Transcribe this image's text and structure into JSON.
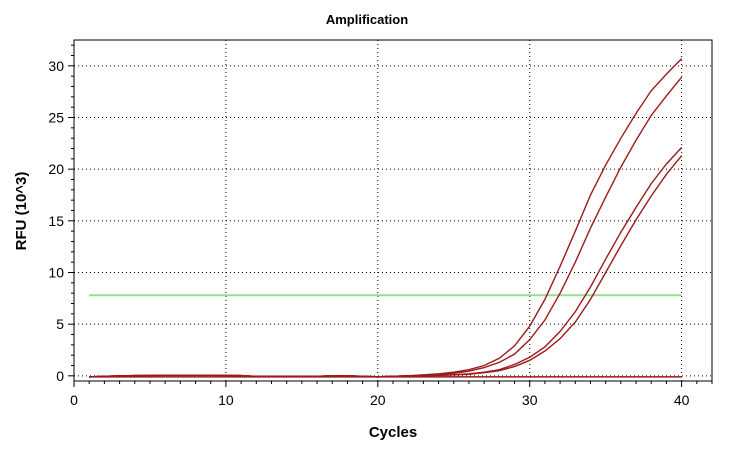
{
  "chart_data": {
    "type": "line",
    "title": "Amplification",
    "xlabel": "Cycles",
    "ylabel": "RFU (10^3)",
    "xlim": [
      0,
      42
    ],
    "ylim": [
      -0.5,
      32.5
    ],
    "xticks": [
      0,
      10,
      20,
      30,
      40
    ],
    "yticks": [
      0,
      5,
      10,
      15,
      20,
      25,
      30
    ],
    "grid": true,
    "threshold": {
      "value": 7.8,
      "color": "#90e090"
    },
    "series_color": "#9b1b1b",
    "x": [
      1,
      2,
      3,
      4,
      5,
      6,
      7,
      8,
      9,
      10,
      11,
      12,
      13,
      14,
      15,
      16,
      17,
      18,
      19,
      20,
      21,
      22,
      23,
      24,
      25,
      26,
      27,
      28,
      29,
      30,
      31,
      32,
      33,
      34,
      35,
      36,
      37,
      38,
      39,
      40
    ],
    "series": [
      {
        "values": [
          -0.1,
          -0.05,
          0.0,
          0.02,
          0.04,
          0.05,
          0.05,
          0.05,
          0.05,
          0.04,
          0.02,
          -0.05,
          -0.05,
          -0.05,
          -0.05,
          -0.05,
          0.0,
          0.0,
          -0.05,
          -0.1,
          -0.05,
          0.0,
          0.1,
          0.2,
          0.35,
          0.6,
          1.0,
          1.7,
          2.9,
          4.8,
          7.4,
          10.6,
          14.0,
          17.5,
          20.4,
          23.0,
          25.4,
          27.6,
          29.2,
          30.7
        ]
      },
      {
        "values": [
          -0.1,
          -0.05,
          0.0,
          0.02,
          0.04,
          0.05,
          0.05,
          0.05,
          0.05,
          0.04,
          0.02,
          -0.05,
          -0.05,
          -0.05,
          -0.05,
          -0.05,
          0.0,
          0.0,
          -0.05,
          -0.1,
          -0.05,
          0.0,
          0.05,
          0.15,
          0.25,
          0.45,
          0.8,
          1.3,
          2.1,
          3.5,
          5.4,
          8.0,
          11.0,
          14.3,
          17.3,
          20.2,
          22.8,
          25.2,
          27.1,
          28.9
        ]
      },
      {
        "values": [
          -0.1,
          -0.05,
          0.0,
          0.02,
          0.04,
          0.05,
          0.05,
          0.05,
          0.05,
          0.04,
          0.02,
          -0.05,
          -0.05,
          -0.05,
          -0.05,
          -0.05,
          0.0,
          0.0,
          -0.05,
          -0.1,
          -0.05,
          0.0,
          0.0,
          0.05,
          0.1,
          0.2,
          0.35,
          0.6,
          1.1,
          1.8,
          2.8,
          4.3,
          6.2,
          8.6,
          11.3,
          13.9,
          16.3,
          18.6,
          20.5,
          22.1
        ]
      },
      {
        "values": [
          -0.1,
          -0.05,
          0.0,
          0.02,
          0.04,
          0.05,
          0.05,
          0.05,
          0.05,
          0.04,
          0.02,
          -0.05,
          -0.05,
          -0.05,
          -0.05,
          -0.05,
          0.0,
          0.0,
          -0.05,
          -0.1,
          -0.05,
          0.0,
          0.0,
          0.05,
          0.1,
          0.15,
          0.3,
          0.5,
          0.9,
          1.5,
          2.4,
          3.6,
          5.2,
          7.4,
          10.0,
          12.6,
          15.1,
          17.4,
          19.5,
          21.3
        ]
      },
      {
        "values": [
          -0.1,
          -0.1,
          -0.1,
          -0.1,
          -0.1,
          -0.1,
          -0.1,
          -0.1,
          -0.1,
          -0.1,
          -0.1,
          -0.1,
          -0.1,
          -0.1,
          -0.1,
          -0.1,
          -0.1,
          -0.1,
          -0.1,
          -0.1,
          -0.1,
          -0.1,
          -0.1,
          -0.1,
          -0.1,
          -0.1,
          -0.1,
          -0.1,
          -0.1,
          -0.1,
          -0.1,
          -0.1,
          -0.1,
          -0.1,
          -0.1,
          -0.1,
          -0.1,
          -0.1,
          -0.1,
          -0.1
        ]
      }
    ]
  }
}
